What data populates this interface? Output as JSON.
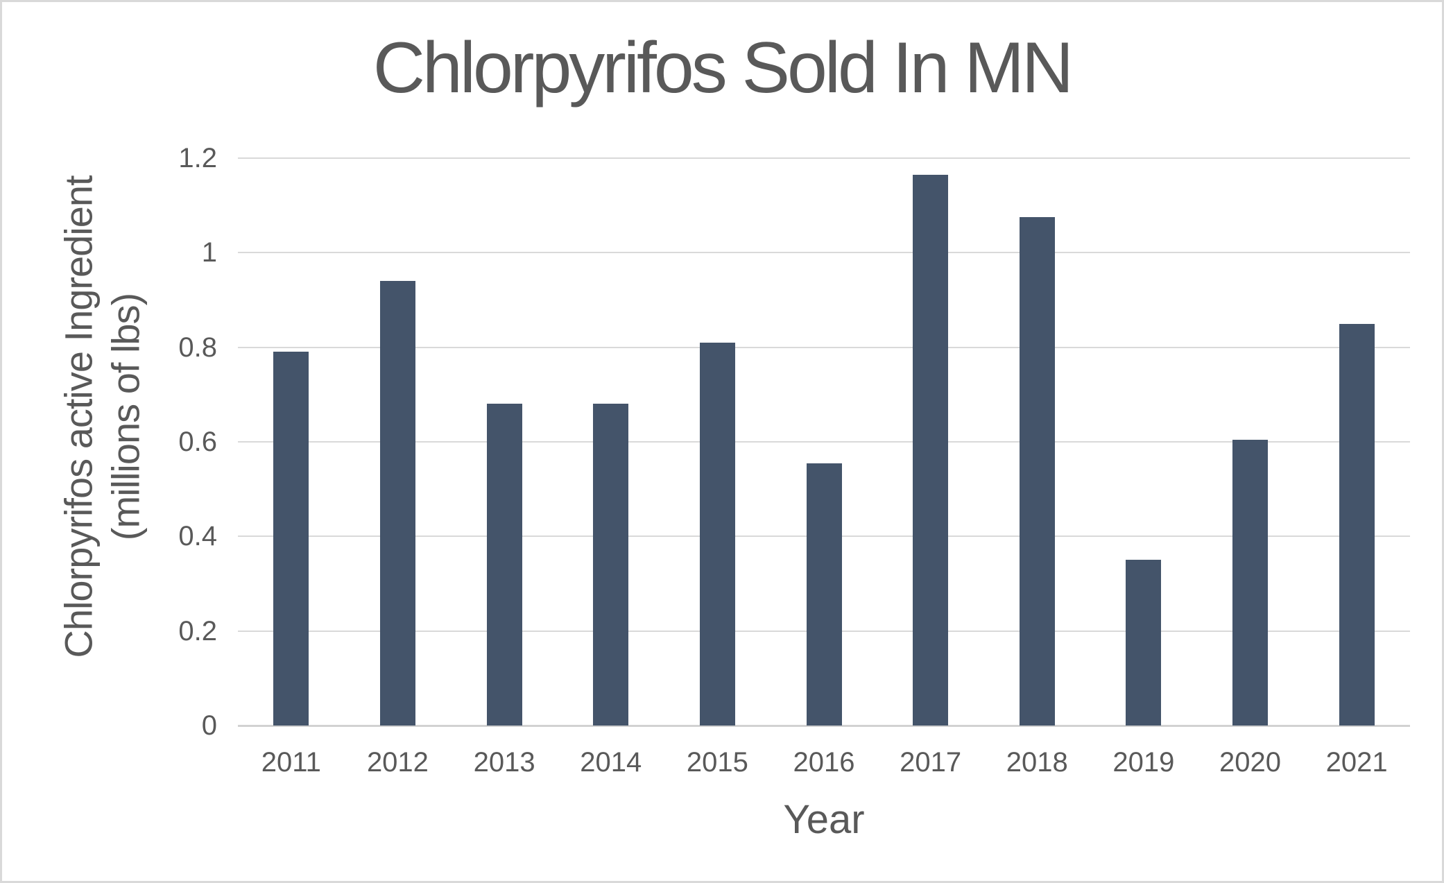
{
  "chart_data": {
    "type": "bar",
    "title": "Chlorpyrifos Sold In MN",
    "xlabel": "Year",
    "ylabel_line1": "Chlorpyrifos active Ingredient",
    "ylabel_line2": "(millions of lbs)",
    "categories": [
      "2011",
      "2012",
      "2013",
      "2014",
      "2015",
      "2016",
      "2017",
      "2018",
      "2019",
      "2020",
      "2021"
    ],
    "values": [
      0.79,
      0.94,
      0.68,
      0.68,
      0.81,
      0.555,
      1.165,
      1.075,
      0.35,
      0.605,
      0.85
    ],
    "ylim": [
      0,
      1.2
    ],
    "yticks": [
      0,
      0.2,
      0.4,
      0.6,
      0.8,
      1,
      1.2
    ],
    "ytick_labels": [
      "0",
      "0.2",
      "0.4",
      "0.6",
      "0.8",
      "1",
      "1.2"
    ],
    "grid": true,
    "legend": false,
    "colors": {
      "bar": "#44546A",
      "text": "#595959",
      "gridline": "#D9D9D9",
      "axis_line": "#D2D2D2",
      "background": "#FFFFFF",
      "canvas_border": "#D9D9D9"
    }
  }
}
